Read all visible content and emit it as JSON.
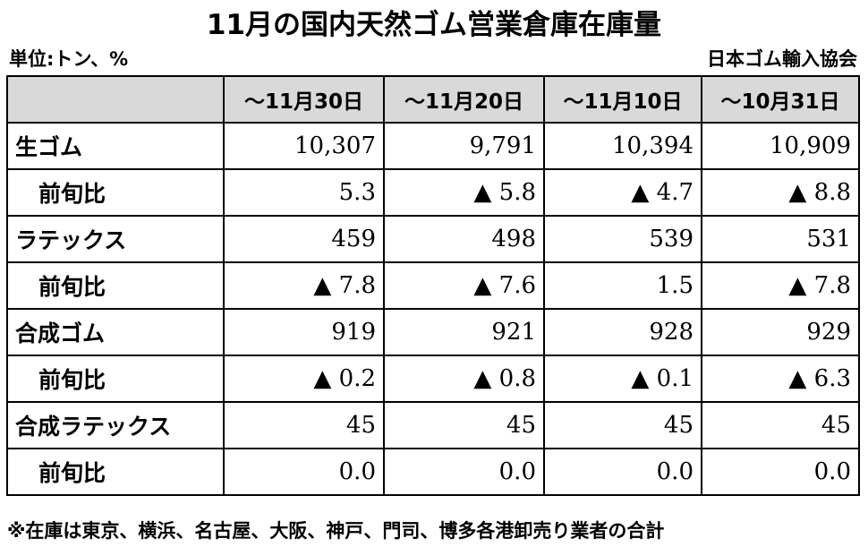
{
  "title": "11月の国内天然ゴム営業倉庫在庫量",
  "unit": "単位:トン、%",
  "source": "日本ゴム輸入協会",
  "table": {
    "headers": [
      "～11月30日",
      "～11月20日",
      "～11月10日",
      "～10月31日"
    ],
    "rows": [
      {
        "label": "生ゴム",
        "sub": false,
        "values": [
          "10,307",
          "9,791",
          "10,394",
          "10,909"
        ]
      },
      {
        "label": "前旬比",
        "sub": true,
        "values": [
          "5.3",
          "▲ 5.8",
          "▲ 4.7",
          "▲ 8.8"
        ]
      },
      {
        "label": "ラテックス",
        "sub": false,
        "values": [
          "459",
          "498",
          "539",
          "531"
        ]
      },
      {
        "label": "前旬比",
        "sub": true,
        "values": [
          "▲ 7.8",
          "▲ 7.6",
          "1.5",
          "▲ 7.8"
        ]
      },
      {
        "label": "合成ゴム",
        "sub": false,
        "values": [
          "919",
          "921",
          "928",
          "929"
        ]
      },
      {
        "label": "前旬比",
        "sub": true,
        "values": [
          "▲ 0.2",
          "▲ 0.8",
          "▲ 0.1",
          "▲ 6.3"
        ]
      },
      {
        "label": "合成ラテックス",
        "sub": false,
        "values": [
          "45",
          "45",
          "45",
          "45"
        ]
      },
      {
        "label": "前旬比",
        "sub": true,
        "values": [
          "0.0",
          "0.0",
          "0.0",
          "0.0"
        ]
      }
    ]
  },
  "note": "※在庫は東京、横浜、名古屋、大阪、神戸、門司、博多各港卸売り業者の合計"
}
